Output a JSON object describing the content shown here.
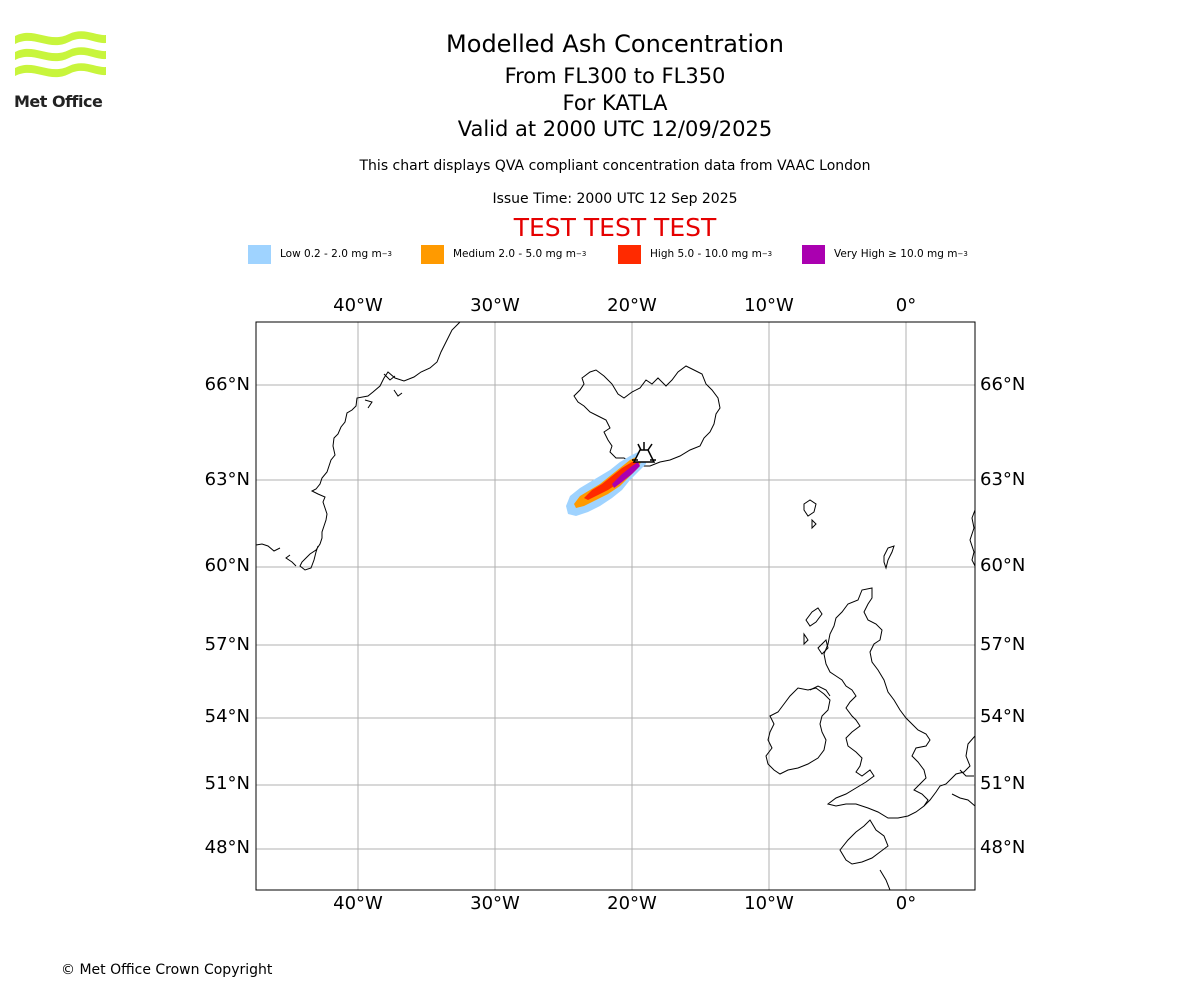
{
  "header": {
    "title": "Modelled Ash Concentration",
    "subtitle_level": "From FL300 to FL350",
    "subtitle_volcano": "For KATLA",
    "subtitle_valid": "Valid at 2000 UTC 12/09/2025",
    "note": "This chart displays QVA compliant concentration data from VAAC London",
    "issue_time": "Issue Time: 2000 UTC 12 Sep 2025",
    "test_banner": "TEST TEST TEST"
  },
  "logo": {
    "text": "Met Office",
    "color": "#c8f53c"
  },
  "legend": [
    {
      "label": "Low 0.2 - 2.0 mg m",
      "sup": "−3",
      "color": "#9fd3ff"
    },
    {
      "label": "Medium 2.0 - 5.0 mg m",
      "sup": "−3",
      "color": "#ff9a00"
    },
    {
      "label": "High 5.0 - 10.0 mg m",
      "sup": "−3",
      "color": "#ff2a00"
    },
    {
      "label": "Very High  ≥  10.0 mg m",
      "sup": "−3",
      "color": "#aa00b0"
    }
  ],
  "map": {
    "lon_labels": [
      "40°W",
      "30°W",
      "20°W",
      "10°W",
      "0°"
    ],
    "lat_labels": [
      "66°N",
      "63°N",
      "60°N",
      "57°N",
      "54°N",
      "51°N",
      "48°N"
    ],
    "volcano": "KATLA"
  },
  "footer": {
    "copyright": "© Met Office Crown Copyright"
  }
}
